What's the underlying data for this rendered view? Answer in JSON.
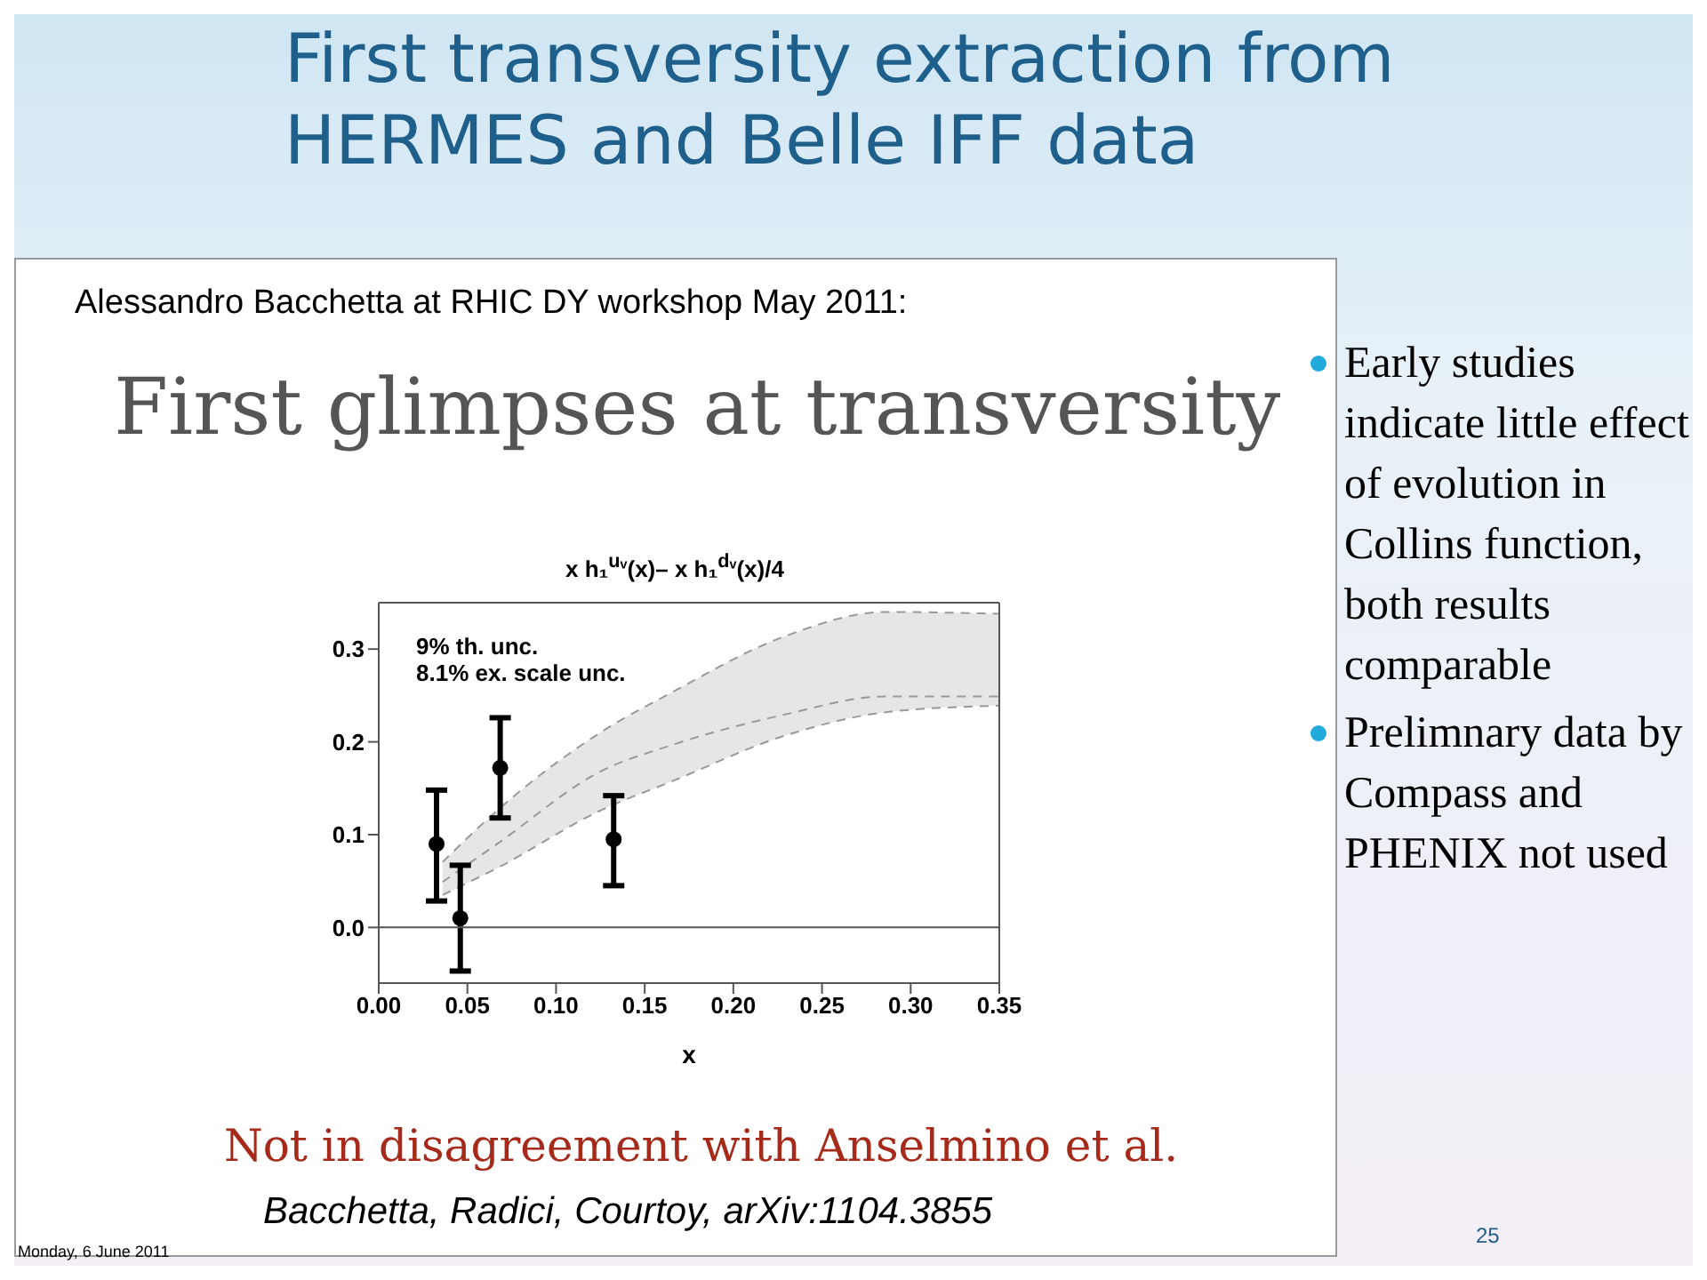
{
  "chart_data": {
    "type": "line",
    "title": "First transversity extraction from HERMES and Belle IFF data",
    "subtitle": "First glimpses at transversity",
    "xlabel": "x",
    "annotations": [
      "Alessandro Bacchetta at RHIC DY workshop May 2011:",
      "x h₁$^{uᵥ}$(x)– x h₁$^{dᵥ}$(x)/4",
      "9% th. unc.",
      "8.1% ex. scale unc.",
      "Not in disagreement with Anselmino et al.",
      "Bacchetta, Radici, Courtoy, arXiv:1104.3855",
      "Early studies indicate little effect of evolution in Collins function, both results comparable",
      "Prelimnary data by Compass and PHENIX not used",
      "Monday, 6 June 2011",
      "25"
    ],
    "series": [
      {
        "color": "#999999",
        "line_style": "dashed",
        "marker": "none",
        "x": [
          0.036,
          0.0668,
          0.125,
          0.166,
          0.228,
          0.286,
          0.35
        ],
        "values": [
          0.049,
          0.09,
          0.168,
          0.197,
          0.229,
          0.249,
          0.249
        ],
        "lower": [
          0.035,
          0.064,
          0.126,
          0.158,
          0.206,
          0.232,
          0.239
        ],
        "upper": [
          0.0705,
          0.126,
          0.21,
          0.254,
          0.313,
          0.34,
          0.338
        ]
      },
      {
        "color": "#999999",
        "line_style": "dashed",
        "marker": "none",
        "x": [
          0.036,
          0.0668,
          0.125,
          0.166,
          0.228,
          0.286,
          0.35
        ],
        "values": [
          0.0705,
          0.126,
          0.21,
          0.254,
          0.313,
          0.34,
          0.338
        ]
      },
      {
        "color": "#999999",
        "line_style": "dashed",
        "marker": "none",
        "x": [
          0.036,
          0.0668,
          0.125,
          0.166,
          0.228,
          0.286,
          0.35
        ],
        "values": [
          0.035,
          0.064,
          0.126,
          0.158,
          0.206,
          0.232,
          0.239
        ]
      },
      {
        "type": "scatter",
        "color": "#000000",
        "marker": "circle",
        "x": [
          0.0326,
          0.046,
          0.0685,
          0.1325
        ],
        "values": [
          0.09,
          0.01,
          0.172,
          0.095
        ],
        "errors": [
          [
            0.0285,
            0.148
          ],
          [
            -0.047,
            0.067
          ],
          [
            0.118,
            0.226
          ],
          [
            0.045,
            0.142
          ]
        ]
      }
    ],
    "xlim": [
      0,
      0.35
    ],
    "xticks": [
      {
        "value": 0,
        "label": "0.00"
      },
      0.05,
      {
        "value": 0.1,
        "label": "0.10"
      },
      0.15,
      {
        "value": 0.2,
        "label": "0.20"
      },
      0.25,
      {
        "value": 0.3,
        "label": "0.30"
      },
      0.35
    ],
    "ylim": [
      -0.06,
      0.35
    ],
    "yticks": [
      {
        "value": 0,
        "label": "0.0"
      },
      0.1,
      0.2,
      0.3
    ],
    "ref_lines": [
      {
        "axis": "y",
        "value": 0,
        "color": "#555555"
      }
    ],
    "grid": false,
    "legend": false
  }
}
